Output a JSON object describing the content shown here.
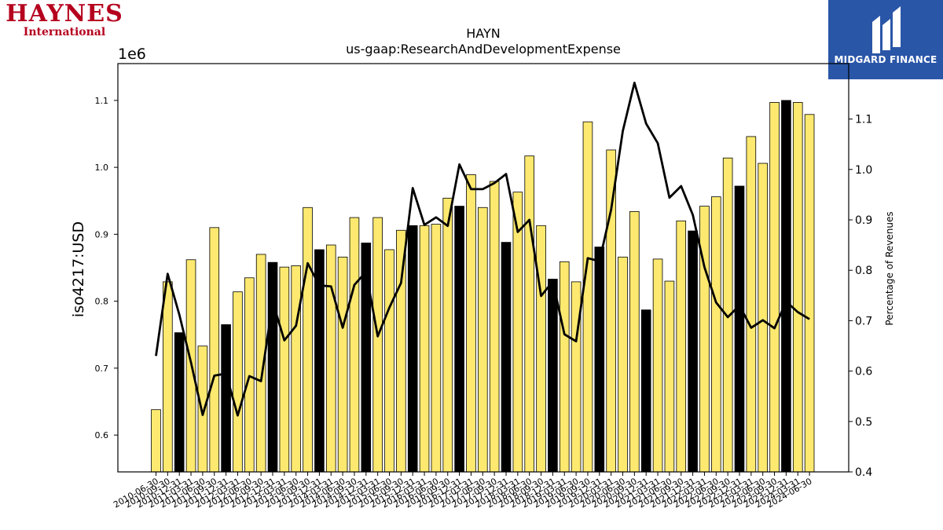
{
  "logos": {
    "left": {
      "name": "HAYNES",
      "sub": "International"
    },
    "right": {
      "name": "MIDGARD FINANCE"
    }
  },
  "chart_data": {
    "type": "bar",
    "title": "HAYN",
    "subtitle": "us-gaap:ResearchAndDevelopmentExpense",
    "ylabel": "iso4217:USD",
    "y_offset_label": "1e6",
    "y2label": "Percentage of Revenues",
    "ylim": [
      0.545,
      1.155
    ],
    "y2lim": [
      0.4,
      1.21
    ],
    "yticks": [
      0.6,
      0.7,
      0.8,
      0.9,
      1.0,
      1.1
    ],
    "ytick_labels": [
      "0.6",
      "0.7",
      "0.8",
      "0.9",
      "1.0",
      "1.1"
    ],
    "y2ticks": [
      0.4,
      0.5,
      0.6,
      0.7,
      0.8,
      0.9,
      1.0,
      1.1
    ],
    "y2tick_labels": [
      "0.4",
      "0.5",
      "0.6",
      "0.7",
      "0.8",
      "0.9",
      "1.0",
      "1.1"
    ],
    "colors": {
      "bar": "#fde96f",
      "bar_highlight": "#000000",
      "line": "#000000"
    },
    "categories": [
      "2010-06-30",
      "2010-09-30",
      "2010-12-31",
      "2011-03-31",
      "2011-06-30",
      "2011-09-30",
      "2011-12-31",
      "2012-03-31",
      "2012-06-30",
      "2012-09-30",
      "2012-12-31",
      "2013-03-31",
      "2013-06-30",
      "2013-09-30",
      "2013-12-31",
      "2014-03-31",
      "2014-06-30",
      "2014-09-30",
      "2014-12-31",
      "2015-03-31",
      "2015-06-30",
      "2015-09-30",
      "2015-12-31",
      "2016-03-31",
      "2016-06-30",
      "2016-09-30",
      "2016-12-31",
      "2017-03-31",
      "2017-06-30",
      "2017-09-30",
      "2017-12-31",
      "2018-03-31",
      "2018-06-30",
      "2018-09-30",
      "2018-12-31",
      "2019-03-31",
      "2019-06-30",
      "2019-09-30",
      "2019-12-31",
      "2020-03-31",
      "2020-06-30",
      "2020-09-30",
      "2020-12-31",
      "2021-03-31",
      "2021-06-30",
      "2021-09-30",
      "2021-12-31",
      "2022-03-31",
      "2022-06-30",
      "2022-09-30",
      "2022-12-31",
      "2023-03-31",
      "2023-06-30",
      "2023-09-30",
      "2023-12-31",
      "2024-03-31",
      "2024-06-30"
    ],
    "xtick_labels": [
      "2010-06-30",
      "2010-09-30",
      "2010-12-31",
      "2011-03-31",
      "2011-06-30",
      "2011-09-30",
      "2011-12-31",
      "2012-03-31",
      "2012-06-30",
      "2012-09-30",
      "2012-12-31",
      "2013-03-31",
      "2013-06-30",
      "2013-09-30",
      "2013-12-31",
      "2014-03-31",
      "2014-06-30",
      "2014-09-30",
      "2014-12-31",
      "2015-03-31",
      "2015-06-30",
      "2015-09-30",
      "2015-12-31",
      "2016-03-31",
      "2016-06-30",
      "2016-09-30",
      "2016-12-31",
      "2017-03-31",
      "2017-06-30",
      "2017-09-30",
      "2017-12-31",
      "2018-03-31",
      "2018-06-30",
      "2018-09-30",
      "2018-12-31",
      "2019-03-31",
      "2019-06-30",
      "2019-09-30",
      "2019-12-31",
      "2020-03-31",
      "2020-06-30",
      "2020-09-30",
      "2020-12-31",
      "2021-03-31",
      "2021-06-30",
      "2021-09-30",
      "2021-12-31",
      "2022-03-31",
      "2022-06-30",
      "2022-09-30",
      "2022-12-31",
      "2023-03-31",
      "2023-06-30",
      "2023-09-30",
      "2023-12-31",
      "2024-03-31",
      "2024-06-30"
    ],
    "values": [
      0.638,
      0.829,
      0.753,
      0.862,
      0.733,
      0.91,
      0.765,
      0.814,
      0.835,
      0.87,
      0.858,
      0.851,
      0.853,
      0.94,
      0.877,
      0.884,
      0.866,
      0.925,
      0.887,
      0.925,
      0.877,
      0.906,
      0.913,
      0.913,
      0.915,
      0.954,
      0.942,
      0.989,
      0.94,
      0.979,
      0.888,
      0.963,
      1.017,
      0.913,
      0.833,
      0.859,
      0.829,
      1.068,
      0.881,
      1.026,
      0.866,
      0.934,
      0.787,
      0.863,
      0.83,
      0.92,
      0.905,
      0.942,
      0.956,
      1.014,
      0.972,
      1.046,
      1.006,
      1.097,
      1.1,
      1.097,
      1.079
    ],
    "highlighted": [
      false,
      false,
      true,
      false,
      false,
      false,
      true,
      false,
      false,
      false,
      true,
      false,
      false,
      false,
      true,
      false,
      false,
      false,
      true,
      false,
      false,
      false,
      true,
      false,
      false,
      false,
      true,
      false,
      false,
      false,
      true,
      false,
      false,
      false,
      true,
      false,
      false,
      false,
      true,
      false,
      false,
      false,
      true,
      false,
      false,
      false,
      true,
      false,
      false,
      false,
      true,
      false,
      false,
      false,
      true,
      false,
      false
    ],
    "line_values": [
      0.63,
      0.793,
      0.712,
      0.617,
      0.513,
      0.591,
      0.595,
      0.512,
      0.59,
      0.58,
      0.737,
      0.661,
      0.69,
      0.814,
      0.77,
      0.768,
      0.686,
      0.771,
      0.797,
      0.669,
      0.726,
      0.775,
      0.963,
      0.89,
      0.905,
      0.888,
      1.01,
      0.961,
      0.961,
      0.973,
      0.991,
      0.876,
      0.9,
      0.749,
      0.778,
      0.673,
      0.659,
      0.824,
      0.818,
      0.92,
      1.076,
      1.172,
      1.091,
      1.052,
      0.944,
      0.967,
      0.91,
      0.806,
      0.736,
      0.707,
      0.73,
      0.686,
      0.701,
      0.685,
      0.738,
      0.717,
      0.703
    ]
  }
}
